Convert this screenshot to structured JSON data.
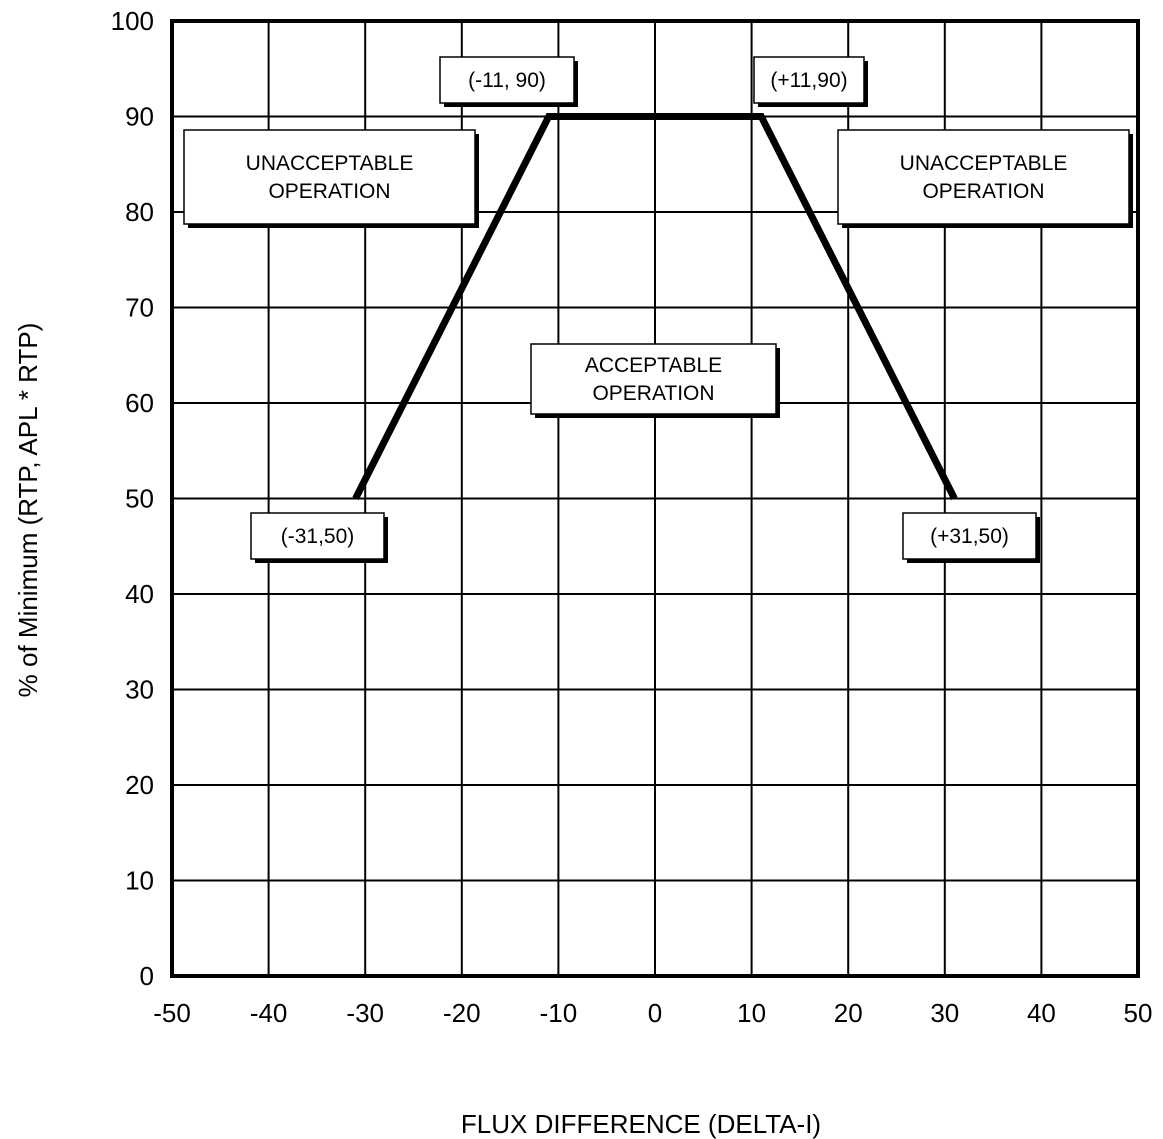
{
  "chart_data": {
    "type": "line",
    "title": "",
    "xlabel": "FLUX DIFFERENCE (DELTA-I)",
    "ylabel": "% of Minimum (RTP, APL * RTP)",
    "xlim": [
      -50,
      50
    ],
    "ylim": [
      0,
      100
    ],
    "xticks": [
      -50,
      -40,
      -30,
      -20,
      -10,
      0,
      10,
      20,
      30,
      40,
      50
    ],
    "yticks": [
      0,
      10,
      20,
      30,
      40,
      50,
      60,
      70,
      80,
      90,
      100
    ],
    "grid": true,
    "series": [
      {
        "x": [
          -31,
          -11,
          11,
          31
        ],
        "y": [
          50,
          90,
          90,
          50
        ]
      }
    ],
    "annotations": [
      {
        "id": "pt-neg11-90",
        "lines": [
          "(-11, 90)"
        ],
        "x": -11,
        "y": 90
      },
      {
        "id": "pt-pos11-90",
        "lines": [
          "(+11,90)"
        ],
        "x": 11,
        "y": 90
      },
      {
        "id": "pt-neg31-50",
        "lines": [
          "(-31,50)"
        ],
        "x": -31,
        "y": 50
      },
      {
        "id": "pt-pos31-50",
        "lines": [
          "(+31,50)"
        ],
        "x": 31,
        "y": 50
      },
      {
        "id": "region-unacceptable-left",
        "lines": [
          "UNACCEPTABLE",
          "OPERATION"
        ]
      },
      {
        "id": "region-unacceptable-right",
        "lines": [
          "UNACCEPTABLE",
          "OPERATION"
        ]
      },
      {
        "id": "region-acceptable",
        "lines": [
          "ACCEPTABLE",
          "OPERATION"
        ]
      }
    ]
  }
}
